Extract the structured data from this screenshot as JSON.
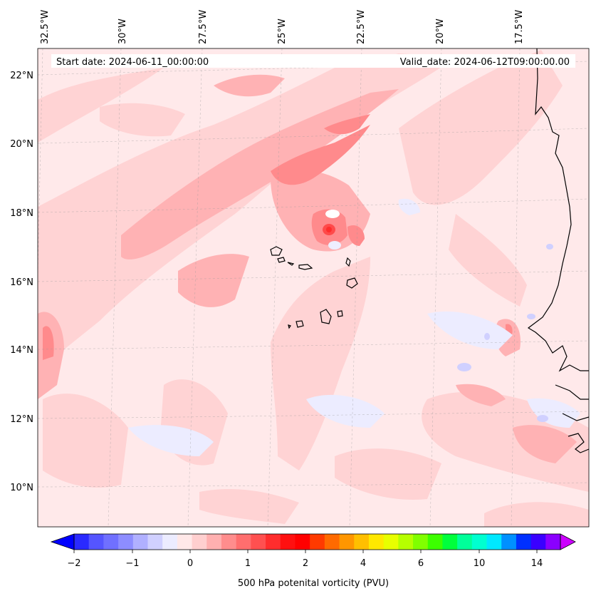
{
  "map": {
    "start_label": "Start date: 2024-06-11_00:00:00",
    "valid_label": "Valid_date: 2024-06-12T09:00:00.00",
    "lon_labels": [
      "32.5°W",
      "30°W",
      "27.5°W",
      "25°W",
      "22.5°W",
      "20°W",
      "17.5°W"
    ],
    "lat_labels": [
      "22°N",
      "20°N",
      "18°N",
      "16°N",
      "14°N",
      "12°N",
      "10°N"
    ],
    "field": "500 hPa potential vorticity",
    "region": "Cape Verde Islands and West African coast"
  },
  "colorbar": {
    "label": "500 hPa potenital vorticity (PVU)",
    "tick_labels": [
      "−2",
      "−1",
      "0",
      "1",
      "2",
      "4",
      "6",
      "10",
      "14"
    ],
    "colors": [
      "#0000ff",
      "#2a2aff",
      "#5555ff",
      "#7070ff",
      "#8d8dff",
      "#b0b0ff",
      "#d0d0ff",
      "#ececff",
      "#ffe8e8",
      "#ffcfcf",
      "#ffb0b0",
      "#ff8d8d",
      "#ff6e6e",
      "#ff5050",
      "#ff2d2d",
      "#ff1010",
      "#ff0000",
      "#ff3a00",
      "#ff6a00",
      "#ff9600",
      "#ffbf00",
      "#ffe800",
      "#e8ff00",
      "#b6ff00",
      "#80ff00",
      "#3cff00",
      "#00ff3c",
      "#00ff9a",
      "#00ffd0",
      "#00e8ff",
      "#0090ff",
      "#0030ff",
      "#3a00ff",
      "#8a00ff",
      "#cc00ff"
    ]
  }
}
